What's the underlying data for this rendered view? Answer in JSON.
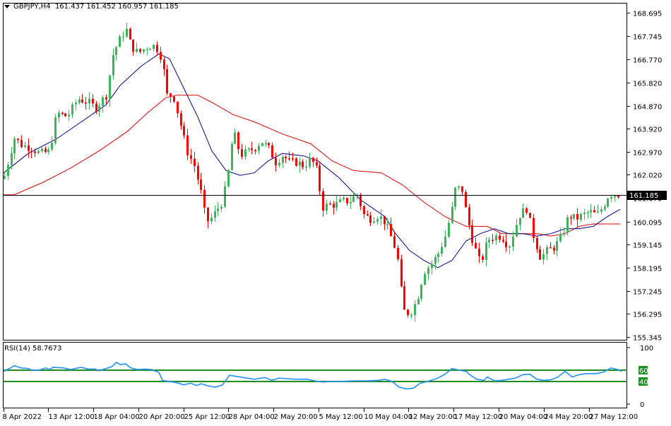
{
  "header": {
    "symbol": "GBPJPY,H4",
    "ohlc": "161.437 161.452 160.957 161.185",
    "open": "161.437",
    "high": "161.452",
    "low": "160.957",
    "close": "161.185"
  },
  "price_axis": {
    "ticks": [
      "168.695",
      "167.745",
      "166.770",
      "165.820",
      "164.870",
      "163.920",
      "162.970",
      "162.020",
      "161.070",
      "160.095",
      "159.145",
      "158.195",
      "157.245",
      "156.295",
      "155.345"
    ],
    "current_price_label": "161.185"
  },
  "rsi": {
    "label": "RSI(14) 58.7673",
    "name": "RSI(14)",
    "value": "58.7673",
    "levels": [
      "60",
      "40"
    ],
    "axis_ticks": [
      "100",
      "0"
    ]
  },
  "time_axis": {
    "ticks": [
      "8 Apr 2022",
      "13 Apr 12:00",
      "18 Apr 04:00",
      "20 Apr 20:00",
      "25 Apr 12:00",
      "28 Apr 04:00",
      "2 May 20:00",
      "5 May 12:00",
      "10 May 04:00",
      "12 May 20:00",
      "17 May 12:00",
      "20 May 04:00",
      "24 May 20:00",
      "27 May 12:00"
    ]
  },
  "colors": {
    "bull": "#3cb45a",
    "bear": "#ff0000",
    "ma_fast": "#00008b",
    "ma_slow": "#e00000",
    "rsi_line": "#1e90ff",
    "rsi_levels": "#228b22",
    "price_line": "#000000"
  },
  "chart_data": [
    {
      "type": "candlestick",
      "title": "GBPJPY,H4",
      "xlabel": "",
      "ylabel": "",
      "ylim": [
        155.345,
        168.695
      ],
      "grid": false,
      "x_tick_labels": [
        "8 Apr 2022",
        "13 Apr 12:00",
        "18 Apr 04:00",
        "20 Apr 20:00",
        "25 Apr 12:00",
        "28 Apr 04:00",
        "2 May 20:00",
        "5 May 12:00",
        "10 May 04:00",
        "12 May 20:00",
        "17 May 12:00",
        "20 May 04:00",
        "24 May 20:00",
        "27 May 12:00"
      ],
      "last": {
        "open": 161.437,
        "high": 161.452,
        "low": 160.957,
        "close": 161.185
      },
      "close_path_points": [
        [
          5,
          161.86
        ],
        [
          20,
          163.55
        ],
        [
          30,
          163.26
        ],
        [
          45,
          163.11
        ],
        [
          55,
          162.91
        ],
        [
          70,
          162.97
        ],
        [
          80,
          164.57
        ],
        [
          95,
          164.42
        ],
        [
          110,
          165.15
        ],
        [
          125,
          165.01
        ],
        [
          135,
          164.77
        ],
        [
          150,
          165.3
        ],
        [
          160,
          167.04
        ],
        [
          170,
          167.62
        ],
        [
          178,
          168.06
        ],
        [
          185,
          167.33
        ],
        [
          195,
          167.04
        ],
        [
          210,
          167.33
        ],
        [
          220,
          167.33
        ],
        [
          230,
          166.75
        ],
        [
          235,
          165.3
        ],
        [
          245,
          165.3
        ],
        [
          255,
          164.13
        ],
        [
          265,
          162.97
        ],
        [
          275,
          162.39
        ],
        [
          285,
          161.23
        ],
        [
          290,
          160.36
        ],
        [
          295,
          160.07
        ],
        [
          305,
          160.5
        ],
        [
          315,
          160.94
        ],
        [
          322,
          161.96
        ],
        [
          330,
          163.85
        ],
        [
          340,
          162.83
        ],
        [
          350,
          162.97
        ],
        [
          360,
          163.12
        ],
        [
          370,
          163.41
        ],
        [
          380,
          163.12
        ],
        [
          390,
          162.54
        ],
        [
          400,
          162.83
        ],
        [
          410,
          162.54
        ],
        [
          420,
          162.54
        ],
        [
          430,
          162.39
        ],
        [
          440,
          162.68
        ],
        [
          450,
          162.1
        ],
        [
          455,
          160.65
        ],
        [
          465,
          160.79
        ],
        [
          475,
          160.79
        ],
        [
          485,
          160.94
        ],
        [
          495,
          160.94
        ],
        [
          505,
          161.23
        ],
        [
          515,
          160.36
        ],
        [
          525,
          160.21
        ],
        [
          535,
          160.36
        ],
        [
          545,
          160.07
        ],
        [
          555,
          159.34
        ],
        [
          560,
          158.91
        ],
        [
          565,
          158.18
        ],
        [
          570,
          156.44
        ],
        [
          580,
          156.29
        ],
        [
          590,
          156.87
        ],
        [
          600,
          158.04
        ],
        [
          610,
          158.33
        ],
        [
          620,
          158.76
        ],
        [
          630,
          159.49
        ],
        [
          640,
          160.65
        ],
        [
          645,
          161.52
        ],
        [
          655,
          161.38
        ],
        [
          660,
          160.36
        ],
        [
          670,
          159.2
        ],
        [
          680,
          158.33
        ],
        [
          690,
          159.34
        ],
        [
          700,
          159.49
        ],
        [
          710,
          159.49
        ],
        [
          720,
          159.05
        ],
        [
          735,
          160.36
        ],
        [
          745,
          160.65
        ],
        [
          755,
          159.49
        ],
        [
          765,
          158.62
        ],
        [
          775,
          158.91
        ],
        [
          785,
          159.05
        ],
        [
          795,
          159.49
        ],
        [
          805,
          160.36
        ],
        [
          815,
          160.21
        ],
        [
          825,
          160.36
        ],
        [
          835,
          160.5
        ],
        [
          845,
          160.36
        ],
        [
          855,
          160.79
        ],
        [
          862,
          161.23
        ],
        [
          870,
          161.23
        ],
        [
          878,
          161.19
        ]
      ],
      "series": [
        {
          "name": "MA fast (blue)",
          "points": [
            [
              5,
              162.1
            ],
            [
              40,
              162.9
            ],
            [
              80,
              163.5
            ],
            [
              120,
              164.3
            ],
            [
              150,
              164.9
            ],
            [
              170,
              165.7
            ],
            [
              200,
              166.5
            ],
            [
              225,
              167.0
            ],
            [
              240,
              166.8
            ],
            [
              260,
              165.6
            ],
            [
              280,
              164.4
            ],
            [
              300,
              163.0
            ],
            [
              320,
              162.2
            ],
            [
              340,
              162.0
            ],
            [
              360,
              162.1
            ],
            [
              380,
              162.6
            ],
            [
              400,
              162.9
            ],
            [
              430,
              162.8
            ],
            [
              450,
              162.6
            ],
            [
              480,
              161.9
            ],
            [
              510,
              161.0
            ],
            [
              530,
              160.6
            ],
            [
              545,
              160.3
            ],
            [
              560,
              159.6
            ],
            [
              580,
              158.9
            ],
            [
              600,
              158.5
            ],
            [
              620,
              158.2
            ],
            [
              640,
              158.5
            ],
            [
              660,
              159.3
            ],
            [
              680,
              159.6
            ],
            [
              700,
              159.8
            ],
            [
              720,
              159.6
            ],
            [
              740,
              159.6
            ],
            [
              760,
              159.5
            ],
            [
              780,
              159.6
            ],
            [
              800,
              159.8
            ],
            [
              820,
              159.8
            ],
            [
              840,
              159.9
            ],
            [
              860,
              160.3
            ],
            [
              878,
              160.6
            ]
          ]
        },
        {
          "name": "MA slow (red)",
          "points": [
            [
              5,
              161.2
            ],
            [
              20,
              161.2
            ],
            [
              60,
              161.7
            ],
            [
              100,
              162.3
            ],
            [
              140,
              163.0
            ],
            [
              180,
              163.8
            ],
            [
              210,
              164.6
            ],
            [
              235,
              165.2
            ],
            [
              250,
              165.3
            ],
            [
              280,
              165.3
            ],
            [
              300,
              165.0
            ],
            [
              330,
              164.5
            ],
            [
              360,
              164.2
            ],
            [
              400,
              163.7
            ],
            [
              440,
              163.3
            ],
            [
              470,
              162.6
            ],
            [
              500,
              162.2
            ],
            [
              540,
              162.1
            ],
            [
              570,
              161.6
            ],
            [
              600,
              160.9
            ],
            [
              630,
              160.3
            ],
            [
              660,
              159.9
            ],
            [
              690,
              159.9
            ],
            [
              710,
              159.6
            ],
            [
              740,
              159.6
            ],
            [
              760,
              159.6
            ],
            [
              780,
              159.5
            ],
            [
              800,
              159.6
            ],
            [
              820,
              159.9
            ],
            [
              840,
              160.0
            ],
            [
              878,
              160.0
            ]
          ]
        },
        {
          "name": "RSI(14)",
          "points": [
            [
              5,
              58
            ],
            [
              15,
              64
            ],
            [
              20,
              68
            ],
            [
              30,
              64
            ],
            [
              40,
              63
            ],
            [
              45,
              60
            ],
            [
              55,
              60
            ],
            [
              65,
              64
            ],
            [
              70,
              61
            ],
            [
              75,
              65
            ],
            [
              90,
              64
            ],
            [
              100,
              61
            ],
            [
              110,
              64
            ],
            [
              115,
              65
            ],
            [
              125,
              62
            ],
            [
              135,
              62
            ],
            [
              140,
              59
            ],
            [
              150,
              63
            ],
            [
              158,
              66
            ],
            [
              165,
              74
            ],
            [
              170,
              70
            ],
            [
              178,
              71
            ],
            [
              185,
              64
            ],
            [
              195,
              61
            ],
            [
              205,
              62
            ],
            [
              215,
              61
            ],
            [
              225,
              56
            ],
            [
              230,
              42
            ],
            [
              240,
              40
            ],
            [
              250,
              38
            ],
            [
              260,
              34
            ],
            [
              270,
              37
            ],
            [
              278,
              33
            ],
            [
              285,
              36
            ],
            [
              295,
              32
            ],
            [
              305,
              30
            ],
            [
              315,
              34
            ],
            [
              325,
              51
            ],
            [
              335,
              49
            ],
            [
              345,
              47
            ],
            [
              360,
              44
            ],
            [
              375,
              47
            ],
            [
              385,
              42
            ],
            [
              395,
              46
            ],
            [
              405,
              45
            ],
            [
              420,
              44
            ],
            [
              435,
              44
            ],
            [
              450,
              40
            ],
            [
              458,
              39
            ],
            [
              465,
              40
            ],
            [
              480,
              40
            ],
            [
              500,
              41
            ],
            [
              520,
              41
            ],
            [
              535,
              42
            ],
            [
              545,
              44
            ],
            [
              555,
              40
            ],
            [
              565,
              30
            ],
            [
              575,
              27
            ],
            [
              585,
              28
            ],
            [
              595,
              37
            ],
            [
              605,
              40
            ],
            [
              620,
              46
            ],
            [
              630,
              53
            ],
            [
              640,
              63
            ],
            [
              650,
              60
            ],
            [
              660,
              58
            ],
            [
              665,
              52
            ],
            [
              675,
              44
            ],
            [
              685,
              42
            ],
            [
              690,
              48
            ],
            [
              700,
              41
            ],
            [
              710,
              42
            ],
            [
              720,
              44
            ],
            [
              730,
              46
            ],
            [
              740,
              52
            ],
            [
              750,
              53
            ],
            [
              760,
              44
            ],
            [
              770,
              42
            ],
            [
              780,
              43
            ],
            [
              790,
              48
            ],
            [
              800,
              58
            ],
            [
              810,
              48
            ],
            [
              820,
              52
            ],
            [
              830,
              54
            ],
            [
              845,
              54
            ],
            [
              855,
              57
            ],
            [
              865,
              64
            ],
            [
              875,
              61
            ],
            [
              880,
              58
            ]
          ]
        }
      ],
      "rsi_ylim": [
        0,
        100
      ],
      "rsi_levels": [
        60,
        40
      ]
    }
  ]
}
